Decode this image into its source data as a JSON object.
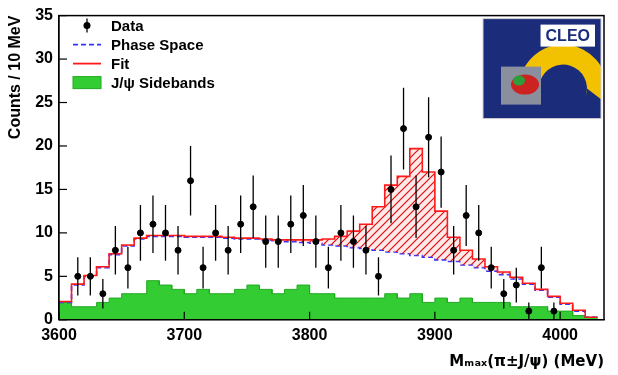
{
  "chart_data": {
    "type": "histogram",
    "x_label": "Mₘₐₓ(π±J/ψ) (MeV)",
    "y_label": "Counts / 10 MeV",
    "annotations": [
      "CLEO"
    ],
    "xlim": [
      3600,
      4035
    ],
    "xticks": [
      3600,
      3700,
      3800,
      3900,
      4000
    ],
    "ylim": [
      0,
      35
    ],
    "yticks": [
      0,
      5,
      10,
      15,
      20,
      25,
      30,
      35
    ],
    "grid": false,
    "legend": "upper left",
    "bins": [
      3600,
      3610,
      3620,
      3630,
      3640,
      3650,
      3660,
      3670,
      3680,
      3690,
      3700,
      3710,
      3720,
      3730,
      3740,
      3750,
      3760,
      3770,
      3780,
      3790,
      3800,
      3810,
      3820,
      3830,
      3840,
      3850,
      3860,
      3870,
      3880,
      3890,
      3900,
      3910,
      3920,
      3930,
      3940,
      3950,
      3960,
      3970,
      3980,
      3990,
      4000,
      4010,
      4020,
      4030
    ],
    "series": [
      {
        "name": "Data",
        "type": "scatter",
        "color": "#000000",
        "marker": "circle",
        "x": [
          3615,
          3625,
          3635,
          3645,
          3655,
          3665,
          3675,
          3685,
          3695,
          3705,
          3715,
          3725,
          3735,
          3745,
          3755,
          3765,
          3775,
          3785,
          3795,
          3805,
          3815,
          3825,
          3835,
          3845,
          3855,
          3865,
          3875,
          3885,
          3895,
          3905,
          3915,
          3925,
          3935,
          3945,
          3955,
          3965,
          3975,
          3985,
          3995
        ],
        "values": [
          5,
          5,
          3,
          8,
          6,
          10,
          11,
          10,
          8,
          16,
          6,
          10,
          8,
          11,
          13,
          9,
          9,
          11,
          12,
          9,
          6,
          10,
          9,
          8,
          5,
          15,
          22,
          13,
          21,
          17,
          8,
          12,
          10,
          6,
          3,
          4,
          1,
          6,
          1
        ],
        "errors": [
          2.2,
          2.2,
          1.7,
          2.8,
          2.4,
          3.2,
          3.3,
          3.2,
          2.8,
          4,
          2.4,
          3.2,
          2.8,
          3.3,
          3.6,
          3,
          3,
          3.3,
          3.5,
          3,
          2.4,
          3.2,
          3,
          2.8,
          2.2,
          3.9,
          4.7,
          3.6,
          4.6,
          4.1,
          2.8,
          3.5,
          3.2,
          2.4,
          1.7,
          2,
          1,
          2.4,
          1
        ]
      },
      {
        "name": "Phase Space",
        "type": "step",
        "color": "#3333ff",
        "line_style": "dashed",
        "values": [
          2,
          4,
          5,
          6,
          7.5,
          8.5,
          9.3,
          9.6,
          9.6,
          9.6,
          9.5,
          9.5,
          9.5,
          9.4,
          9.3,
          9.3,
          9.2,
          9.1,
          9,
          8.9,
          8.8,
          8.6,
          8.5,
          8.3,
          8.2,
          8,
          7.8,
          7.6,
          7.4,
          7.2,
          6.9,
          6.7,
          6.3,
          6,
          5.6,
          5.2,
          4.7,
          4.1,
          3.4,
          2.6,
          1.8,
          1,
          0.3
        ]
      },
      {
        "name": "Fit",
        "type": "step",
        "color": "#ff1a1a",
        "line_style": "solid",
        "values": [
          2.1,
          4.1,
          5.1,
          6.1,
          7.6,
          8.6,
          9.4,
          9.7,
          9.7,
          9.7,
          9.6,
          9.6,
          9.6,
          9.5,
          9.4,
          9.4,
          9.3,
          9.2,
          9.2,
          9.2,
          9.2,
          9.3,
          9.6,
          10.2,
          11,
          13,
          15.5,
          16.5,
          19.7,
          17,
          12.5,
          9.5,
          8,
          7,
          6.1,
          5.5,
          4.9,
          4.2,
          3.5,
          2.7,
          1.9,
          1.1,
          0.3
        ]
      },
      {
        "name": "J/ψ Sidebands",
        "type": "area",
        "color": "#33cc33",
        "values": [
          2,
          1.5,
          1.5,
          2,
          2.5,
          3,
          3,
          4.5,
          4,
          3.5,
          3,
          3.5,
          3,
          3,
          3.5,
          4,
          3.5,
          3,
          3.5,
          4,
          3,
          3,
          2.5,
          2.5,
          2.5,
          2.5,
          3,
          2.5,
          3,
          2,
          2.5,
          2,
          2.5,
          2,
          2,
          2,
          1.5,
          1.5,
          1.5,
          1,
          1,
          0.5,
          0.3
        ]
      }
    ]
  }
}
